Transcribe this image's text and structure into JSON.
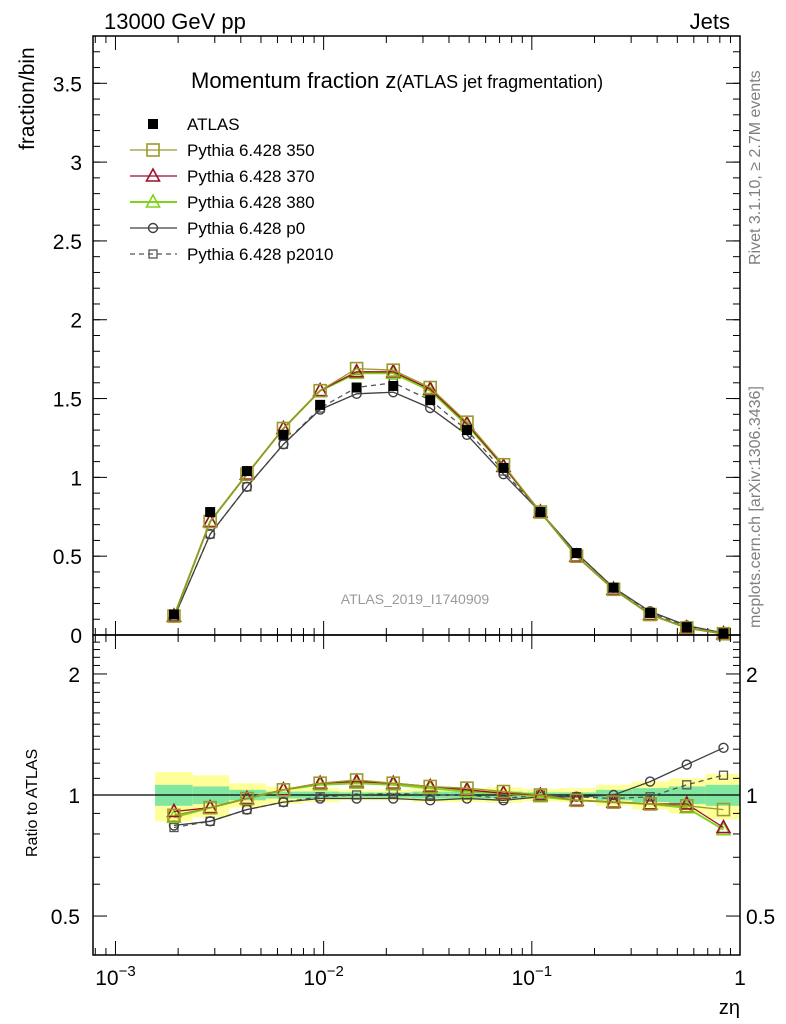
{
  "header": {
    "left": "13000 GeV pp",
    "right": "Jets"
  },
  "side_labels": {
    "rivet": "Rivet 3.1.10, ≥ 2.7M events",
    "mcplots": "mcplots.cern.ch [arXiv:1306.3436]"
  },
  "chart_data": [
    {
      "type": "line",
      "title_main": "Momentum fraction z",
      "title_sub": "(ATLAS jet fragmentation)",
      "watermark": "ATLAS_2019_I1740909",
      "ylabel": "fraction/bin",
      "xscale": "log",
      "xlim": [
        0.00078,
        1.0
      ],
      "ylim": [
        0,
        3.8
      ],
      "yticks": [
        0,
        0.5,
        1,
        1.5,
        2,
        2.5,
        3,
        3.5
      ],
      "ytick_labels": [
        "0",
        "0.5",
        "1",
        "1.5",
        "2",
        "2.5",
        "3",
        "3.5"
      ],
      "legend_position": "top-left",
      "x": [
        0.00191,
        0.00285,
        0.00428,
        0.00641,
        0.00962,
        0.0144,
        0.0216,
        0.0325,
        0.0488,
        0.0731,
        0.11,
        0.164,
        0.247,
        0.37,
        0.555,
        0.833
      ],
      "series": [
        {
          "name": "ATLAS",
          "color": "#000000",
          "marker": "filled-square",
          "line": "none",
          "values": [
            0.13,
            0.78,
            1.04,
            1.27,
            1.46,
            1.57,
            1.58,
            1.49,
            1.3,
            1.06,
            0.78,
            0.52,
            0.3,
            0.14,
            0.05,
            0.01
          ]
        },
        {
          "name": "Pythia 6.428 350",
          "color": "#9a9a2a",
          "marker": "open-square",
          "line": "solid",
          "values": [
            0.12,
            0.72,
            1.02,
            1.31,
            1.55,
            1.69,
            1.68,
            1.57,
            1.35,
            1.08,
            0.78,
            0.5,
            0.29,
            0.13,
            0.045,
            0.008
          ]
        },
        {
          "name": "Pythia 6.428 370",
          "color": "#9b0f2a",
          "marker": "open-triangle",
          "line": "solid",
          "values": [
            0.12,
            0.72,
            1.02,
            1.31,
            1.55,
            1.67,
            1.67,
            1.56,
            1.34,
            1.07,
            0.78,
            0.5,
            0.29,
            0.13,
            0.045,
            0.008
          ]
        },
        {
          "name": "Pythia 6.428 380",
          "color": "#7fd319",
          "marker": "open-triangle",
          "line": "solid",
          "values": [
            0.12,
            0.72,
            1.02,
            1.31,
            1.55,
            1.66,
            1.66,
            1.55,
            1.33,
            1.07,
            0.78,
            0.5,
            0.29,
            0.13,
            0.045,
            0.008
          ]
        },
        {
          "name": "Pythia 6.428 p0",
          "color": "#404040",
          "marker": "open-circle",
          "line": "solid",
          "values": [
            0.11,
            0.64,
            0.94,
            1.21,
            1.43,
            1.53,
            1.54,
            1.44,
            1.27,
            1.02,
            0.78,
            0.52,
            0.3,
            0.15,
            0.06,
            0.013
          ]
        },
        {
          "name": "Pythia 6.428 p2010",
          "color": "#555555",
          "marker": "open-square-small",
          "line": "dashed",
          "values": [
            0.11,
            0.64,
            0.94,
            1.21,
            1.44,
            1.57,
            1.6,
            1.49,
            1.3,
            1.04,
            0.78,
            0.52,
            0.3,
            0.14,
            0.053,
            0.011
          ]
        }
      ]
    },
    {
      "type": "line",
      "ylabel": "Ratio to ATLAS",
      "xlabel": "zη",
      "xscale": "log",
      "yscale": "log",
      "xlim": [
        0.00078,
        1.0
      ],
      "ylim": [
        0.4,
        2.5
      ],
      "yticks": [
        0.5,
        1,
        2
      ],
      "ytick_labels": [
        "0.5",
        "1",
        "2"
      ],
      "xtick_labels": [
        {
          "base": "10",
          "exp": "−3",
          "value": 0.001
        },
        {
          "base": "10",
          "exp": "−2",
          "value": 0.01
        },
        {
          "base": "10",
          "exp": "−1",
          "value": 0.1
        },
        {
          "base": "1",
          "exp": "",
          "value": 1
        }
      ],
      "band_edges": [
        0.00155,
        0.00235,
        0.00352,
        0.00528,
        0.00792,
        0.0119,
        0.0178,
        0.0267,
        0.0401,
        0.0601,
        0.0902,
        0.135,
        0.203,
        0.304,
        0.456,
        0.684,
        1.0
      ],
      "band_inner_halfwidth": [
        0.06,
        0.05,
        0.03,
        0.02,
        0.02,
        0.015,
        0.015,
        0.02,
        0.02,
        0.02,
        0.015,
        0.015,
        0.03,
        0.04,
        0.05,
        0.06
      ],
      "band_outer_halfwidth": [
        0.14,
        0.12,
        0.07,
        0.05,
        0.04,
        0.03,
        0.03,
        0.04,
        0.04,
        0.045,
        0.035,
        0.04,
        0.06,
        0.08,
        0.1,
        0.13
      ],
      "colors": {
        "band_inner": "#80e6a0",
        "band_outer": "#ffff99"
      },
      "x": [
        0.00191,
        0.00285,
        0.00428,
        0.00641,
        0.00962,
        0.0144,
        0.0216,
        0.0325,
        0.0488,
        0.0731,
        0.11,
        0.164,
        0.247,
        0.37,
        0.555,
        0.833
      ],
      "series": [
        {
          "name": "Pythia 6.428 350",
          "color": "#9a9a2a",
          "marker": "open-square",
          "line": "solid",
          "values": [
            0.89,
            0.93,
            0.98,
            1.03,
            1.07,
            1.09,
            1.07,
            1.05,
            1.04,
            1.02,
            1.0,
            0.97,
            0.96,
            0.95,
            0.94,
            0.92
          ]
        },
        {
          "name": "Pythia 6.428 370",
          "color": "#9b0f2a",
          "marker": "open-triangle",
          "line": "solid",
          "values": [
            0.91,
            0.93,
            0.98,
            1.03,
            1.07,
            1.08,
            1.07,
            1.05,
            1.03,
            1.01,
            1.0,
            0.97,
            0.96,
            0.95,
            0.95,
            0.83
          ]
        },
        {
          "name": "Pythia 6.428 380",
          "color": "#7fd319",
          "marker": "open-triangle",
          "line": "solid",
          "values": [
            0.88,
            0.93,
            0.98,
            1.03,
            1.06,
            1.07,
            1.06,
            1.04,
            1.02,
            1.01,
            0.99,
            0.97,
            0.96,
            0.95,
            0.93,
            0.82
          ]
        },
        {
          "name": "Pythia 6.428 p0",
          "color": "#404040",
          "marker": "open-circle",
          "line": "solid",
          "values": [
            0.84,
            0.86,
            0.92,
            0.96,
            0.98,
            0.98,
            0.98,
            0.97,
            0.98,
            0.97,
            0.99,
            0.99,
            1.0,
            1.08,
            1.19,
            1.31
          ]
        },
        {
          "name": "Pythia 6.428 p2010",
          "color": "#555555",
          "marker": "open-square-small",
          "line": "dashed",
          "values": [
            0.83,
            0.86,
            0.92,
            0.96,
            0.99,
            1.0,
            1.01,
            1.0,
            1.0,
            0.98,
            1.0,
            0.99,
            0.98,
            0.99,
            1.06,
            1.12
          ]
        }
      ]
    }
  ]
}
